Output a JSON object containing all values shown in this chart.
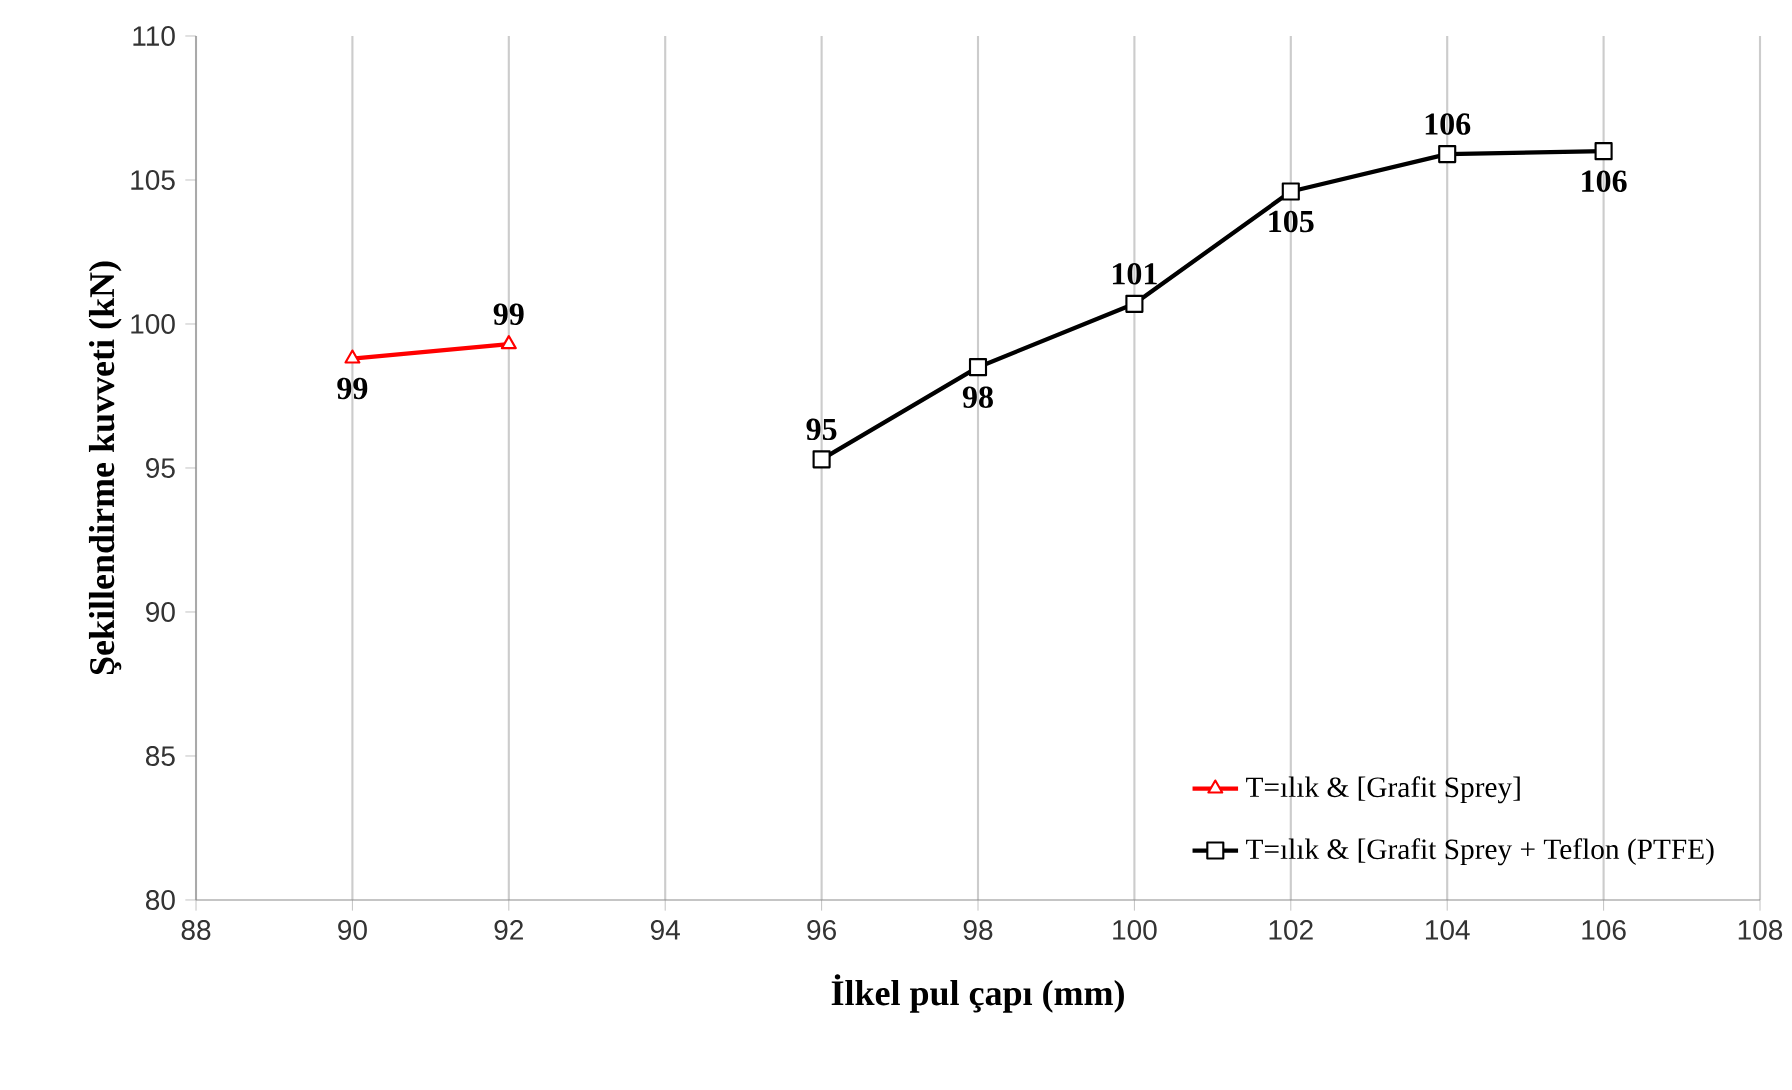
{
  "chart_data": {
    "type": "line",
    "xlabel": "İlkel pul çapı (mm)",
    "ylabel": "Şekillendirme kuvveti (kN)",
    "xlim": [
      88,
      108
    ],
    "xticks": [
      88,
      90,
      92,
      94,
      96,
      98,
      100,
      102,
      104,
      106,
      108
    ],
    "ylim": [
      80,
      110
    ],
    "yticks": [
      80,
      85,
      90,
      95,
      100,
      105,
      110
    ],
    "grid": "x",
    "legend": "bottom right",
    "line_style": "solid",
    "series": [
      {
        "name": "T=ılık & [Grafit Sprey]",
        "color": "#ff0000",
        "marker": "triangle",
        "x": [
          90,
          92
        ],
        "values": [
          98.8,
          99.3
        ],
        "value_labels": [
          "99",
          "99"
        ]
      },
      {
        "name": "T=ılık & [Grafit Sprey + Teflon (PTFE)",
        "color": "#000000",
        "marker": "square",
        "x": [
          96,
          98,
          100,
          102,
          104,
          106
        ],
        "values": [
          95.3,
          98.5,
          100.7,
          104.6,
          105.9,
          106.0
        ],
        "value_labels": [
          "95",
          "98",
          "101",
          "105",
          "106",
          "106"
        ]
      }
    ]
  }
}
